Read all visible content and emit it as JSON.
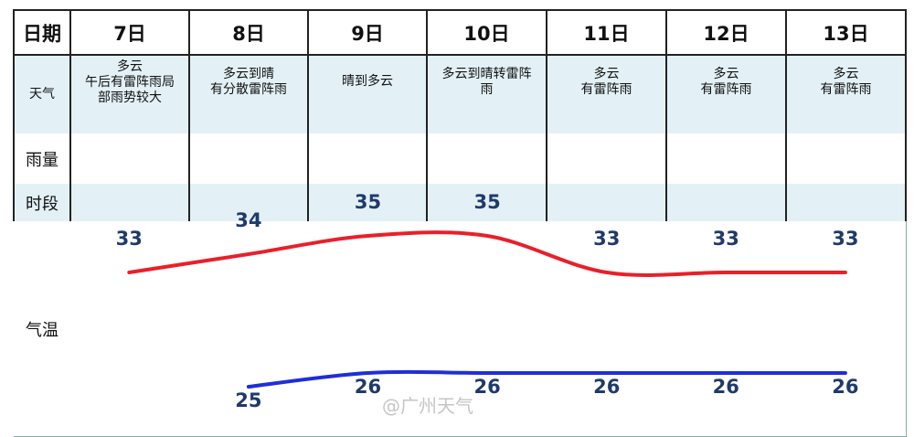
{
  "header": {
    "date_label": "日期"
  },
  "row_labels": {
    "weather": "天气",
    "rain": "雨量",
    "period": "时段",
    "temp": "气温"
  },
  "days": [
    {
      "date": "7日",
      "weather": [
        "多云",
        "午后有雷阵雨局",
        "部雨势较大"
      ]
    },
    {
      "date": "8日",
      "weather": [
        "多云到晴",
        "有分散雷阵雨"
      ]
    },
    {
      "date": "9日",
      "weather": [
        "晴到多云"
      ]
    },
    {
      "date": "10日",
      "weather": [
        "多云到晴转雷阵",
        "雨"
      ]
    },
    {
      "date": "11日",
      "weather": [
        "多云",
        "有雷阵雨"
      ]
    },
    {
      "date": "12日",
      "weather": [
        "多云",
        "有雷阵雨"
      ]
    },
    {
      "date": "13日",
      "weather": [
        "多云",
        "有雷阵雨"
      ]
    }
  ],
  "chart_data": {
    "type": "line",
    "categories": [
      "7日",
      "8日",
      "9日",
      "10日",
      "11日",
      "12日",
      "13日"
    ],
    "series": [
      {
        "key": "high",
        "values": [
          33,
          34,
          35,
          35,
          33,
          33,
          33
        ],
        "color": "#e8202a"
      },
      {
        "key": "low",
        "values": [
          null,
          25,
          26,
          26,
          26,
          26,
          26
        ],
        "color": "#1f2fd6"
      }
    ],
    "label_color": "#1f3a6b"
  },
  "watermark": "@广州天气"
}
